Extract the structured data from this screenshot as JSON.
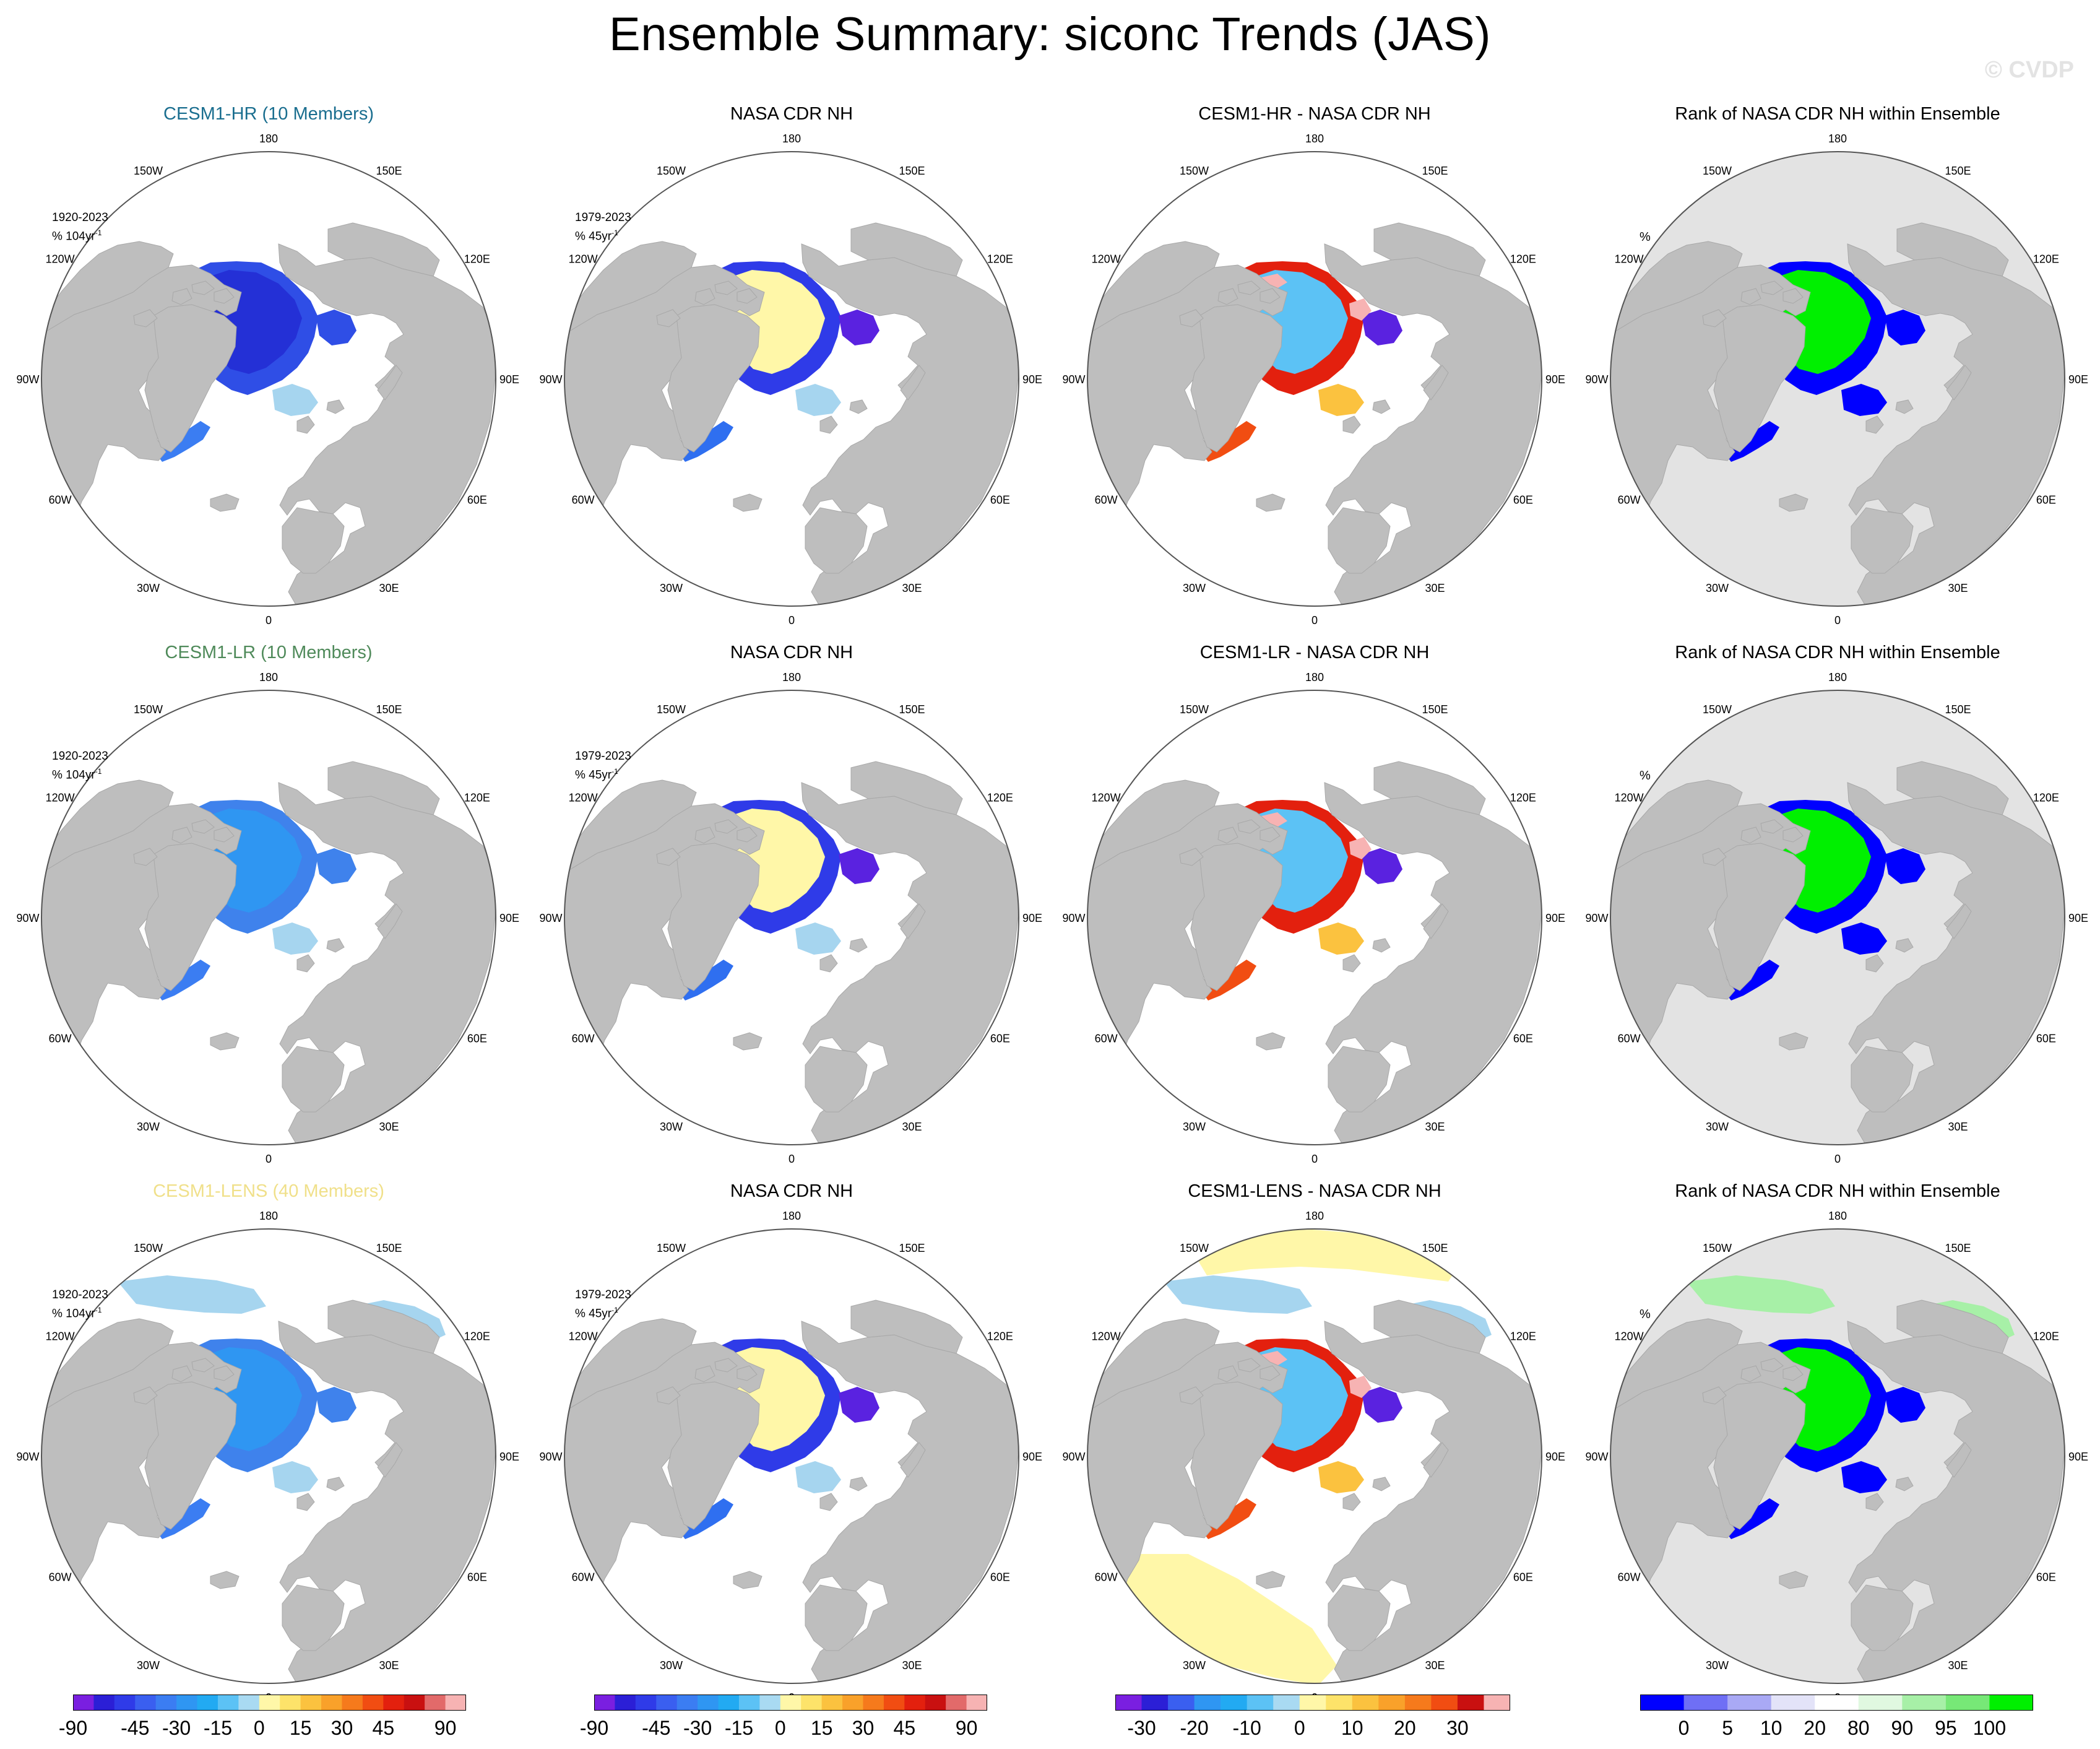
{
  "title": "Ensemble Summary: siconc Trends (JAS)",
  "watermark": "© CVDP",
  "lon_labels": [
    "180",
    "150E",
    "120E",
    "90E",
    "60E",
    "30E",
    "0",
    "30W",
    "60W",
    "90W",
    "120W",
    "150W"
  ],
  "rows": [
    {
      "model": "CESM1-HR (10 Members)",
      "model_color": "#1a6e8f",
      "model_period": "1920-2023",
      "model_units": "% 104yr",
      "model_units_sup": "-1",
      "obs": "NASA CDR NH",
      "obs_period": "1979-2023",
      "obs_units": "% 45yr",
      "obs_units_sup": "-1",
      "diff": "CESM1-HR - NASA CDR NH",
      "rank": "Rank of NASA CDR NH within Ensemble",
      "rank_units": "%"
    },
    {
      "model": "CESM1-LR (10 Members)",
      "model_color": "#4f8a5a",
      "model_period": "1920-2023",
      "model_units": "% 104yr",
      "model_units_sup": "-1",
      "obs": "NASA CDR NH",
      "obs_period": "1979-2023",
      "obs_units": "% 45yr",
      "obs_units_sup": "-1",
      "diff": "CESM1-LR - NASA CDR NH",
      "rank": "Rank of NASA CDR NH within Ensemble",
      "rank_units": "%"
    },
    {
      "model": "CESM1-LENS (40 Members)",
      "model_color": "#f0e08a",
      "model_period": "1920-2023",
      "model_units": "% 104yr",
      "model_units_sup": "-1",
      "obs": "NASA CDR NH",
      "obs_period": "1979-2023",
      "obs_units": "% 45yr",
      "obs_units_sup": "-1",
      "diff": "CESM1-LENS - NASA CDR NH",
      "rank": "Rank of NASA CDR NH within Ensemble",
      "rank_units": "%"
    }
  ],
  "colorbars": [
    {
      "name": "model-trend",
      "colors": [
        "#7a1fe0",
        "#2b1fd6",
        "#2f3be8",
        "#3a5ff0",
        "#3b7df2",
        "#2f96f2",
        "#22aaf2",
        "#5cc2f5",
        "#a9daf2",
        "#fff7a8",
        "#fde36a",
        "#fbc23f",
        "#f9a12a",
        "#f67a1c",
        "#f14d12",
        "#e3200e",
        "#c91010",
        "#e26a6a",
        "#f7b3b3"
      ],
      "labels": [
        "-90",
        "-45",
        "-30",
        "-15",
        "0",
        "15",
        "30",
        "45",
        "90"
      ],
      "label_bounds": [
        0,
        3,
        5,
        7,
        9,
        11,
        13,
        15,
        18
      ]
    },
    {
      "name": "obs-trend",
      "colors": [
        "#7a1fe0",
        "#2b1fd6",
        "#2f3be8",
        "#3a5ff0",
        "#3b7df2",
        "#2f96f2",
        "#22aaf2",
        "#5cc2f5",
        "#a9daf2",
        "#fff7a8",
        "#fde36a",
        "#fbc23f",
        "#f9a12a",
        "#f67a1c",
        "#f14d12",
        "#e3200e",
        "#c91010",
        "#e26a6a",
        "#f7b3b3"
      ],
      "labels": [
        "-90",
        "-45",
        "-30",
        "-15",
        "0",
        "15",
        "30",
        "45",
        "90"
      ],
      "label_bounds": [
        0,
        3,
        5,
        7,
        9,
        11,
        13,
        15,
        18
      ]
    },
    {
      "name": "difference",
      "colors": [
        "#7a1fe0",
        "#2b1fd6",
        "#3a5ff0",
        "#2f96f2",
        "#22aaf2",
        "#5cc2f5",
        "#a9daf2",
        "#fff7a8",
        "#fde36a",
        "#fbc23f",
        "#f9a12a",
        "#f67a1c",
        "#f14d12",
        "#c91010",
        "#f7b3b3"
      ],
      "labels": [
        "-30",
        "-20",
        "-10",
        "0",
        "10",
        "20",
        "30"
      ],
      "label_bounds": [
        1,
        3,
        5,
        7,
        9,
        11,
        13
      ]
    },
    {
      "name": "rank",
      "colors": [
        "#0000ff",
        "#6f6ff5",
        "#a9a9f5",
        "#e3e3f8",
        "#ffffff",
        "#e0f8e0",
        "#a7f0a7",
        "#77e877",
        "#00f000"
      ],
      "labels": [
        "0",
        "5",
        "10",
        "20",
        "80",
        "90",
        "95",
        "100"
      ],
      "label_bounds": [
        1,
        2,
        3,
        4,
        5,
        6,
        7,
        8
      ]
    }
  ]
}
